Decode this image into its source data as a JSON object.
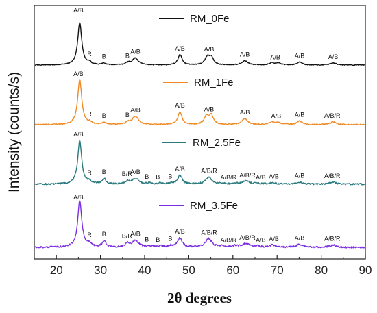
{
  "chart_data": {
    "type": "line",
    "xlabel": "2θ degrees",
    "ylabel": "Intensity (counts/s)",
    "xlim": [
      15,
      90
    ],
    "xticks": [
      20,
      30,
      40,
      50,
      60,
      70,
      80,
      90
    ],
    "y_ticks_shown": false,
    "grid": false,
    "series": [
      {
        "name": "RM_0Fe",
        "color": "#111111",
        "peaks": [
          [
            25.3,
            1.0,
            0.55
          ],
          [
            27.5,
            0.05,
            0.5
          ],
          [
            30.8,
            0.04,
            0.5
          ],
          [
            36.3,
            0.05,
            0.6
          ],
          [
            37.9,
            0.16,
            0.8
          ],
          [
            48.0,
            0.24,
            0.55
          ],
          [
            54.2,
            0.18,
            0.65
          ],
          [
            55.1,
            0.17,
            0.55
          ],
          [
            62.7,
            0.1,
            0.8
          ],
          [
            68.8,
            0.05,
            0.6
          ],
          [
            70.3,
            0.05,
            0.6
          ],
          [
            75.1,
            0.07,
            0.7
          ],
          [
            82.7,
            0.05,
            0.8
          ]
        ],
        "labels": [
          {
            "x": 25.0,
            "text": "A/B"
          },
          {
            "x": 27.5,
            "text": "R"
          },
          {
            "x": 30.8,
            "text": "B"
          },
          {
            "x": 36.1,
            "text": "B"
          },
          {
            "x": 37.9,
            "text": "A/B"
          },
          {
            "x": 48.0,
            "text": "A/B"
          },
          {
            "x": 54.6,
            "text": "A/B"
          },
          {
            "x": 62.7,
            "text": "A/B"
          },
          {
            "x": 69.6,
            "text": "A/B"
          },
          {
            "x": 75.1,
            "text": "A/B"
          },
          {
            "x": 82.7,
            "text": "A/B"
          }
        ]
      },
      {
        "name": "RM_1Fe",
        "color": "#F08A24",
        "peaks": [
          [
            25.3,
            1.0,
            0.55
          ],
          [
            27.5,
            0.04,
            0.5
          ],
          [
            30.8,
            0.05,
            0.5
          ],
          [
            36.3,
            0.05,
            0.6
          ],
          [
            37.9,
            0.18,
            0.8
          ],
          [
            48.0,
            0.28,
            0.55
          ],
          [
            54.0,
            0.18,
            0.6
          ],
          [
            55.1,
            0.2,
            0.55
          ],
          [
            62.7,
            0.13,
            0.8
          ],
          [
            68.8,
            0.06,
            0.6
          ],
          [
            70.3,
            0.05,
            0.6
          ],
          [
            75.1,
            0.08,
            0.7
          ],
          [
            82.7,
            0.06,
            0.8
          ]
        ],
        "labels": [
          {
            "x": 25.0,
            "text": "A/B"
          },
          {
            "x": 27.5,
            "text": "R"
          },
          {
            "x": 30.8,
            "text": "B"
          },
          {
            "x": 36.1,
            "text": "B"
          },
          {
            "x": 37.9,
            "text": "A/B"
          },
          {
            "x": 48.0,
            "text": "A/B"
          },
          {
            "x": 54.6,
            "text": "A/B"
          },
          {
            "x": 62.7,
            "text": "A/B"
          },
          {
            "x": 69.8,
            "text": "A/B"
          },
          {
            "x": 75.1,
            "text": "A/B"
          },
          {
            "x": 82.5,
            "text": "A/B/R"
          }
        ]
      },
      {
        "name": "RM_2.5Fe",
        "color": "#2B7A7F",
        "peaks": [
          [
            25.3,
            1.0,
            0.55
          ],
          [
            27.5,
            0.06,
            0.5
          ],
          [
            30.8,
            0.13,
            0.5
          ],
          [
            36.1,
            0.07,
            0.5
          ],
          [
            37.9,
            0.13,
            0.9
          ],
          [
            41.0,
            0.02,
            0.6
          ],
          [
            43.5,
            0.02,
            0.6
          ],
          [
            46.0,
            0.02,
            0.6
          ],
          [
            48.0,
            0.2,
            0.6
          ],
          [
            54.5,
            0.16,
            0.85
          ],
          [
            57.5,
            0.02,
            0.6
          ],
          [
            60.5,
            0.02,
            0.6
          ],
          [
            62.9,
            0.07,
            1.0
          ],
          [
            65.5,
            0.02,
            0.6
          ],
          [
            69.0,
            0.04,
            0.7
          ],
          [
            75.1,
            0.05,
            0.8
          ],
          [
            82.7,
            0.05,
            0.8
          ]
        ],
        "labels": [
          {
            "x": 25.0,
            "text": "A/B"
          },
          {
            "x": 27.5,
            "text": "R"
          },
          {
            "x": 30.8,
            "text": "B"
          },
          {
            "x": 36.0,
            "text": "B/R"
          },
          {
            "x": 37.9,
            "text": "A/B"
          },
          {
            "x": 40.5,
            "text": "B"
          },
          {
            "x": 43.0,
            "text": "B"
          },
          {
            "x": 45.8,
            "text": "B"
          },
          {
            "x": 48.0,
            "text": "A/B"
          },
          {
            "x": 54.6,
            "text": "A/B/R"
          },
          {
            "x": 59.0,
            "text": "A/B/R"
          },
          {
            "x": 63.3,
            "text": "A/B/R"
          },
          {
            "x": 66.3,
            "text": "A/B"
          },
          {
            "x": 69.3,
            "text": "A/B"
          },
          {
            "x": 75.1,
            "text": "A/B"
          },
          {
            "x": 82.5,
            "text": "A/B/R"
          }
        ]
      },
      {
        "name": "RM_3.5Fe",
        "color": "#7B2FE0",
        "peaks": [
          [
            25.3,
            1.0,
            0.55
          ],
          [
            27.5,
            0.07,
            0.5
          ],
          [
            30.8,
            0.13,
            0.5
          ],
          [
            36.1,
            0.08,
            0.5
          ],
          [
            37.9,
            0.14,
            0.9
          ],
          [
            41.0,
            0.03,
            0.6
          ],
          [
            43.5,
            0.03,
            0.6
          ],
          [
            46.0,
            0.03,
            0.6
          ],
          [
            48.0,
            0.2,
            0.6
          ],
          [
            54.5,
            0.18,
            0.85
          ],
          [
            57.5,
            0.03,
            0.6
          ],
          [
            60.5,
            0.03,
            0.6
          ],
          [
            62.9,
            0.08,
            1.0
          ],
          [
            65.5,
            0.03,
            0.6
          ],
          [
            69.0,
            0.05,
            0.7
          ],
          [
            75.1,
            0.06,
            0.8
          ],
          [
            82.7,
            0.05,
            0.8
          ]
        ],
        "labels": [
          {
            "x": 25.0,
            "text": "A/B"
          },
          {
            "x": 27.5,
            "text": "R"
          },
          {
            "x": 30.8,
            "text": "B"
          },
          {
            "x": 36.0,
            "text": "B/R"
          },
          {
            "x": 37.9,
            "text": "A/B"
          },
          {
            "x": 40.5,
            "text": "B"
          },
          {
            "x": 43.0,
            "text": "B"
          },
          {
            "x": 45.8,
            "text": "B"
          },
          {
            "x": 48.0,
            "text": "A/B"
          },
          {
            "x": 54.6,
            "text": "A/B/R"
          },
          {
            "x": 59.0,
            "text": "A/B/R"
          },
          {
            "x": 63.3,
            "text": "A/B/R"
          },
          {
            "x": 66.3,
            "text": "A/B"
          },
          {
            "x": 69.3,
            "text": "A/B"
          },
          {
            "x": 75.1,
            "text": "A/B"
          },
          {
            "x": 82.5,
            "text": "A/B/R"
          }
        ]
      }
    ]
  }
}
